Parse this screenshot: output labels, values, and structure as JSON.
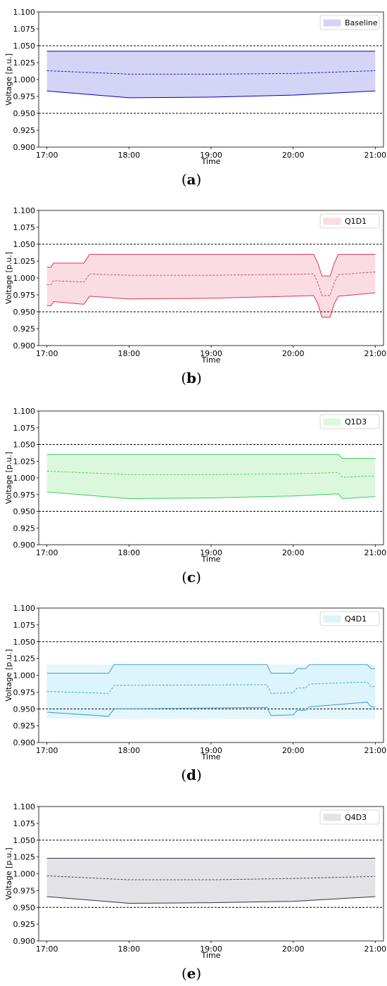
{
  "chart_data": [
    {
      "type": "area",
      "panel": "a",
      "caption": "a",
      "color": "#0000cc",
      "fill": "#d4d4f7",
      "xlabel": "Time",
      "ylabel": "Voltage [p.u.]",
      "xticks": [
        "17:00",
        "18:00",
        "19:00",
        "20:00",
        "21:00"
      ],
      "xlim": [
        16.9,
        21.1
      ],
      "ylim": [
        0.9,
        1.1
      ],
      "yticks": [
        "0.900",
        "0.925",
        "0.950",
        "0.975",
        "1.000",
        "1.025",
        "1.050",
        "1.075",
        "1.100"
      ],
      "ref_lines": [
        0.95,
        1.05
      ],
      "legend": "Baseline",
      "legend_position": "top-right",
      "grid": false,
      "upper": [
        [
          17.0,
          1.042
        ],
        [
          21.0,
          1.042
        ]
      ],
      "mean": [
        [
          17.0,
          1.013
        ],
        [
          18.0,
          1.008
        ],
        [
          19.0,
          1.008
        ],
        [
          20.0,
          1.009
        ],
        [
          21.0,
          1.013
        ]
      ],
      "lower": [
        [
          17.0,
          0.983
        ],
        [
          18.0,
          0.973
        ],
        [
          19.0,
          0.974
        ],
        [
          20.0,
          0.977
        ],
        [
          21.0,
          0.983
        ]
      ]
    },
    {
      "type": "area",
      "panel": "b",
      "caption": "b",
      "color": "#e0305a",
      "fill": "#fadde2",
      "xlabel": "Time",
      "ylabel": "Voltage [p.u.]",
      "xticks": [
        "17:00",
        "18:00",
        "19:00",
        "20:00",
        "21:00"
      ],
      "xlim": [
        16.9,
        21.1
      ],
      "ylim": [
        0.9,
        1.1
      ],
      "yticks": [
        "0.900",
        "0.925",
        "0.950",
        "0.975",
        "1.000",
        "1.025",
        "1.050",
        "1.075",
        "1.100"
      ],
      "ref_lines": [
        0.95,
        1.05
      ],
      "legend": "Q1D1",
      "legend_position": "top-right",
      "grid": false,
      "upper": [
        [
          17.0,
          1.016
        ],
        [
          17.05,
          1.016
        ],
        [
          17.08,
          1.022
        ],
        [
          17.45,
          1.022
        ],
        [
          17.52,
          1.035
        ],
        [
          20.25,
          1.035
        ],
        [
          20.3,
          1.022
        ],
        [
          20.35,
          1.003
        ],
        [
          20.45,
          1.003
        ],
        [
          20.5,
          1.022
        ],
        [
          20.55,
          1.035
        ],
        [
          21.0,
          1.035
        ]
      ],
      "mean": [
        [
          17.0,
          0.99
        ],
        [
          17.05,
          0.99
        ],
        [
          17.08,
          0.996
        ],
        [
          17.45,
          0.994
        ],
        [
          17.52,
          1.006
        ],
        [
          18.0,
          1.004
        ],
        [
          19.0,
          1.004
        ],
        [
          20.25,
          1.006
        ],
        [
          20.3,
          0.993
        ],
        [
          20.35,
          0.974
        ],
        [
          20.45,
          0.974
        ],
        [
          20.5,
          0.993
        ],
        [
          20.55,
          1.005
        ],
        [
          21.0,
          1.009
        ]
      ],
      "lower": [
        [
          17.0,
          0.959
        ],
        [
          17.05,
          0.959
        ],
        [
          17.08,
          0.965
        ],
        [
          17.45,
          0.961
        ],
        [
          17.52,
          0.973
        ],
        [
          18.0,
          0.969
        ],
        [
          19.0,
          0.97
        ],
        [
          20.25,
          0.974
        ],
        [
          20.3,
          0.962
        ],
        [
          20.35,
          0.942
        ],
        [
          20.45,
          0.942
        ],
        [
          20.5,
          0.962
        ],
        [
          20.55,
          0.973
        ],
        [
          21.0,
          0.978
        ]
      ]
    },
    {
      "type": "area",
      "panel": "c",
      "caption": "c",
      "color": "#3ccc5a",
      "fill": "#dcf8dc",
      "xlabel": "Time",
      "ylabel": "Voltage [p.u.]",
      "xticks": [
        "17:00",
        "18:00",
        "19:00",
        "20:00",
        "21:00"
      ],
      "xlim": [
        16.9,
        21.1
      ],
      "ylim": [
        0.9,
        1.1
      ],
      "yticks": [
        "0.900",
        "0.925",
        "0.950",
        "0.975",
        "1.000",
        "1.025",
        "1.050",
        "1.075",
        "1.100"
      ],
      "ref_lines": [
        0.95,
        1.05
      ],
      "legend": "Q1D3",
      "legend_position": "top-right",
      "grid": false,
      "upper": [
        [
          17.0,
          1.035
        ],
        [
          20.55,
          1.035
        ],
        [
          20.6,
          1.029
        ],
        [
          21.0,
          1.029
        ]
      ],
      "mean": [
        [
          17.0,
          1.01
        ],
        [
          18.0,
          1.005
        ],
        [
          19.0,
          1.005
        ],
        [
          20.0,
          1.006
        ],
        [
          20.55,
          1.008
        ],
        [
          20.6,
          1.001
        ],
        [
          21.0,
          1.003
        ]
      ],
      "lower": [
        [
          17.0,
          0.979
        ],
        [
          18.0,
          0.969
        ],
        [
          19.0,
          0.97
        ],
        [
          20.0,
          0.973
        ],
        [
          20.55,
          0.976
        ],
        [
          20.6,
          0.969
        ],
        [
          21.0,
          0.972
        ]
      ]
    },
    {
      "type": "area",
      "panel": "d",
      "caption": "d",
      "color": "#3c9ccc",
      "fill": "#dcf4fb",
      "xlabel": "Time",
      "ylabel": "Voltage [p.u.]",
      "xticks": [
        "17:00",
        "18:00",
        "19:00",
        "20:00",
        "21:00"
      ],
      "xlim": [
        16.9,
        21.1
      ],
      "ylim": [
        0.9,
        1.1
      ],
      "yticks": [
        "0.900",
        "0.925",
        "0.950",
        "0.975",
        "1.000",
        "1.025",
        "1.050",
        "1.075",
        "1.100"
      ],
      "ref_lines": [
        0.95,
        1.05
      ],
      "legend": "Q4D1",
      "legend_position": "top-right",
      "grid": false,
      "upper": [
        [
          17.0,
          1.003
        ],
        [
          17.75,
          1.003
        ],
        [
          17.82,
          1.016
        ],
        [
          19.68,
          1.016
        ],
        [
          19.73,
          1.003
        ],
        [
          20.0,
          1.003
        ],
        [
          20.05,
          1.01
        ],
        [
          20.15,
          1.01
        ],
        [
          20.2,
          1.016
        ],
        [
          20.9,
          1.016
        ],
        [
          20.95,
          1.01
        ],
        [
          21.0,
          1.01
        ]
      ],
      "mean": [
        [
          17.0,
          0.976
        ],
        [
          17.75,
          0.973
        ],
        [
          17.82,
          0.985
        ],
        [
          19.68,
          0.986
        ],
        [
          19.73,
          0.973
        ],
        [
          20.0,
          0.974
        ],
        [
          20.05,
          0.981
        ],
        [
          20.15,
          0.981
        ],
        [
          20.2,
          0.987
        ],
        [
          20.9,
          0.99
        ],
        [
          20.95,
          0.983
        ],
        [
          21.0,
          0.983
        ]
      ],
      "lower": [
        [
          17.0,
          0.945
        ],
        [
          17.75,
          0.939
        ],
        [
          17.82,
          0.95
        ],
        [
          19.68,
          0.952
        ],
        [
          19.73,
          0.94
        ],
        [
          20.0,
          0.941
        ],
        [
          20.05,
          0.948
        ],
        [
          20.15,
          0.948
        ],
        [
          20.2,
          0.953
        ],
        [
          20.9,
          0.96
        ],
        [
          20.95,
          0.953
        ],
        [
          21.0,
          0.953
        ]
      ],
      "band_extent": [
        0.935,
        1.016
      ]
    },
    {
      "type": "area",
      "panel": "e",
      "caption": "e",
      "color": "#303048",
      "fill": "#e3e3e6",
      "xlabel": "Time",
      "ylabel": "Voltage [p.u.]",
      "xticks": [
        "17:00",
        "18:00",
        "19:00",
        "20:00",
        "21:00"
      ],
      "xlim": [
        16.9,
        21.1
      ],
      "ylim": [
        0.9,
        1.1
      ],
      "yticks": [
        "0.900",
        "0.925",
        "0.950",
        "0.975",
        "1.000",
        "1.025",
        "1.050",
        "1.075",
        "1.100"
      ],
      "ref_lines": [
        0.95,
        1.05
      ],
      "legend": "Q4D3",
      "legend_position": "top-right",
      "grid": false,
      "upper": [
        [
          17.0,
          1.023
        ],
        [
          21.0,
          1.023
        ]
      ],
      "mean": [
        [
          17.0,
          0.997
        ],
        [
          18.0,
          0.991
        ],
        [
          19.0,
          0.991
        ],
        [
          20.0,
          0.993
        ],
        [
          21.0,
          0.996
        ]
      ],
      "lower": [
        [
          17.0,
          0.966
        ],
        [
          18.0,
          0.956
        ],
        [
          19.0,
          0.957
        ],
        [
          20.0,
          0.959
        ],
        [
          21.0,
          0.966
        ]
      ]
    }
  ]
}
